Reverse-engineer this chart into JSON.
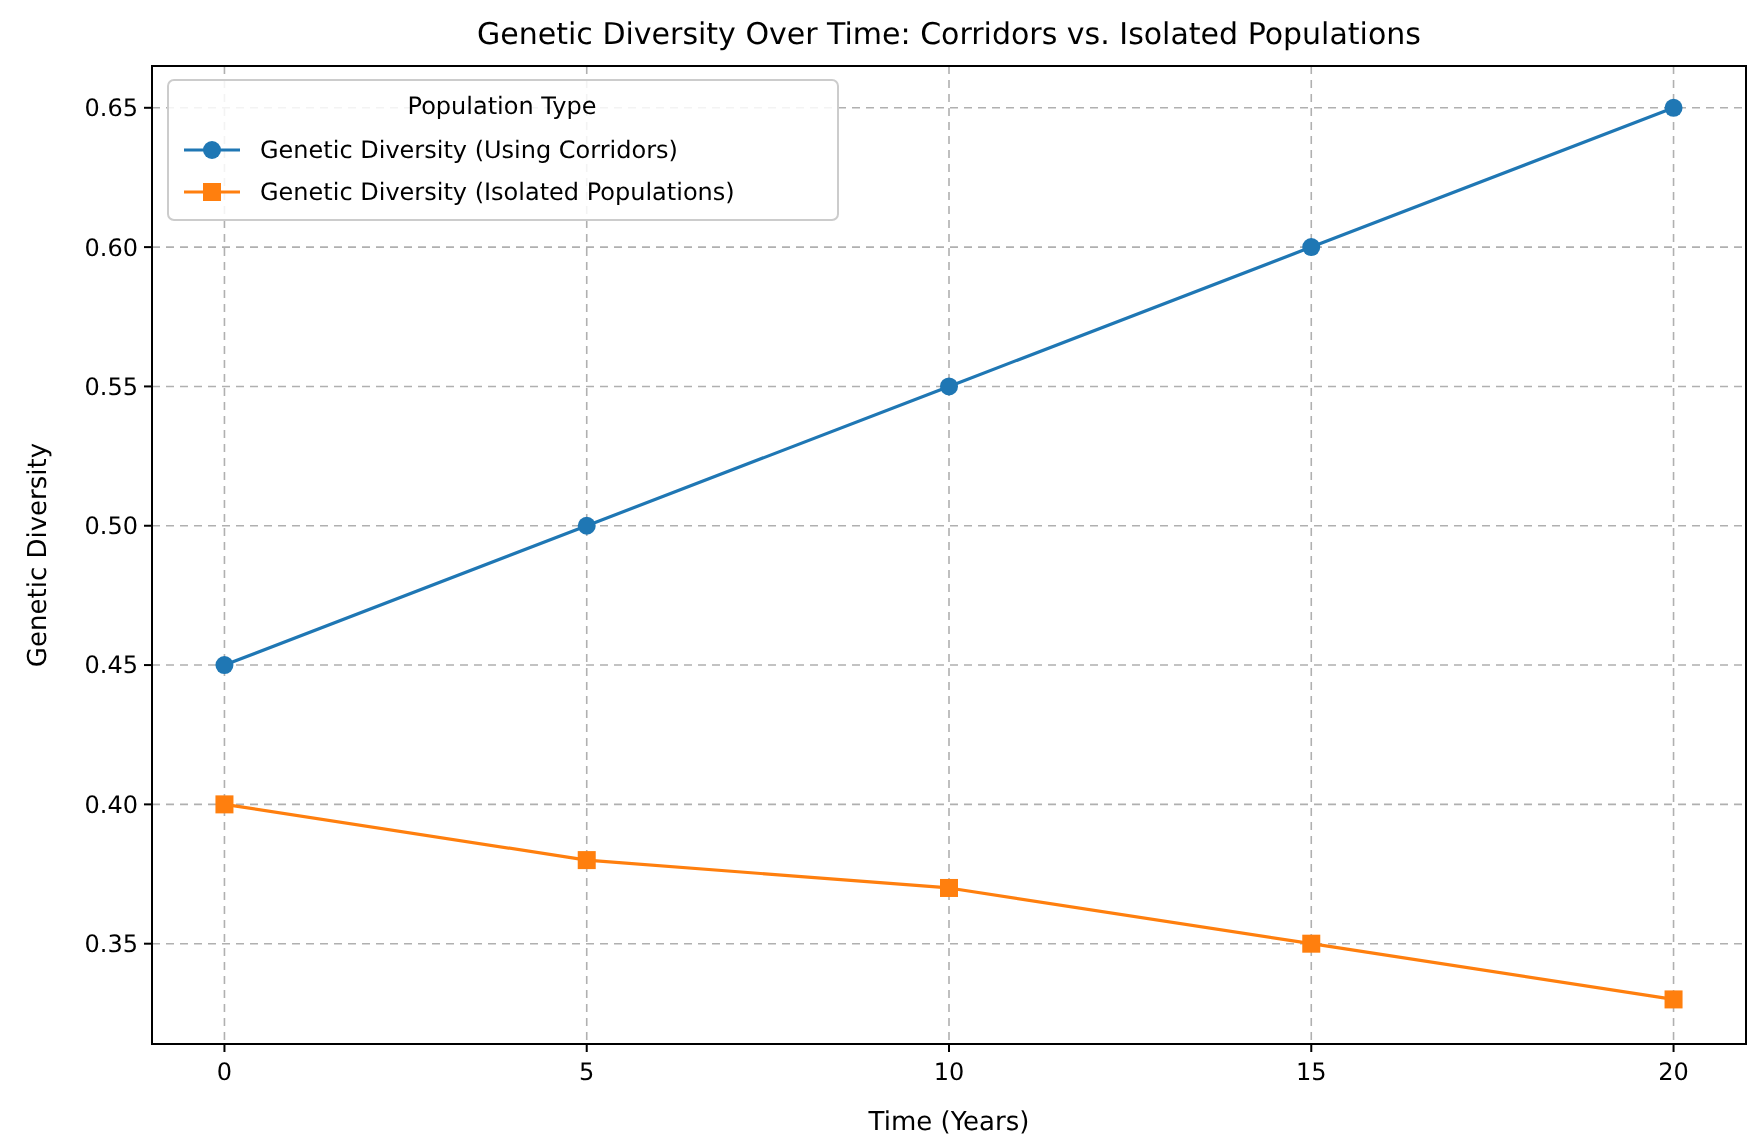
{
  "chart_data": {
    "type": "line",
    "title": "Genetic Diversity Over Time: Corridors vs. Isolated Populations",
    "xlabel": "Time (Years)",
    "ylabel": "Genetic Diversity",
    "legend_title": "Population Type",
    "x": [
      0,
      5,
      10,
      15,
      20
    ],
    "series": [
      {
        "name": "Genetic Diversity (Using Corridors)",
        "color": "#1f77b4",
        "values": [
          0.45,
          0.5,
          0.55,
          0.6,
          0.65
        ],
        "marker": "circle"
      },
      {
        "name": "Genetic Diversity (Isolated Populations)",
        "color": "#ff7f0e",
        "values": [
          0.4,
          0.38,
          0.37,
          0.35,
          0.33
        ],
        "marker": "square"
      }
    ],
    "xlim": [
      -1,
      21
    ],
    "ylim": [
      0.314,
      0.665
    ],
    "xticks": [
      0,
      5,
      10,
      15,
      20
    ],
    "yticks": [
      {
        "value": 0.35,
        "label": "0.35"
      },
      {
        "value": 0.4,
        "label": "0.40"
      },
      {
        "value": 0.45,
        "label": "0.45"
      },
      {
        "value": 0.5,
        "label": "0.50"
      },
      {
        "value": 0.55,
        "label": "0.55"
      },
      {
        "value": 0.6,
        "label": "0.60"
      },
      {
        "value": 0.65,
        "label": "0.65"
      }
    ],
    "grid": true,
    "legend": "top left",
    "line_style": "solid"
  }
}
